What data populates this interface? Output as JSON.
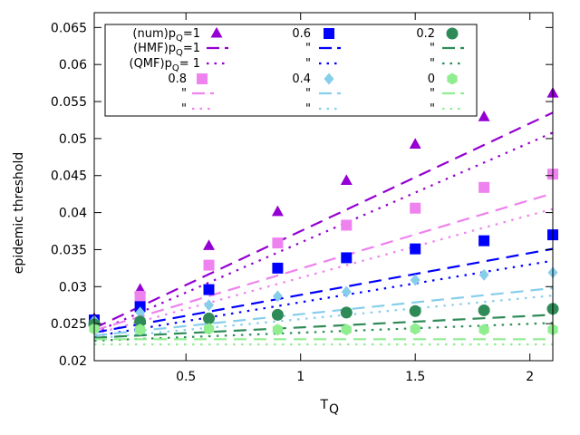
{
  "chart_data": {
    "type": "scatter",
    "title": "",
    "xlabel": "T",
    "xlabel_sub": "Q",
    "ylabel": "epidemic threshold",
    "xlim": [
      0.1,
      2.1
    ],
    "ylim": [
      0.02,
      0.067
    ],
    "xticks": [
      0.5,
      1,
      1.5,
      2
    ],
    "xtick_labels": [
      "0.5",
      "1",
      "1.5",
      "2"
    ],
    "yticks": [
      0.02,
      0.025,
      0.03,
      0.035,
      0.04,
      0.045,
      0.05,
      0.055,
      0.06,
      0.065
    ],
    "ytick_labels": [
      "0.02",
      "0.025",
      "0.03",
      "0.035",
      "0.04",
      "0.045",
      "0.05",
      "0.055",
      "0.06",
      "0.065"
    ],
    "grid": false,
    "legend_position": "top-left",
    "x_num": [
      0.1,
      0.3,
      0.6,
      0.9,
      1.2,
      1.5,
      1.8,
      2.1
    ],
    "series": [
      {
        "pq": "1",
        "color": "#9400d3",
        "marker": "triangle",
        "num": [
          0.0257,
          0.0296,
          0.0355,
          0.0401,
          0.0443,
          0.0492,
          0.0529,
          0.0561
        ],
        "hmf": [
          [
            0.1,
            0.0244
          ],
          [
            2.1,
            0.0535
          ]
        ],
        "qmf": [
          [
            0.1,
            0.0238
          ],
          [
            2.1,
            0.0508
          ]
        ]
      },
      {
        "pq": "0.8",
        "color": "#ee82ee",
        "marker": "square",
        "num": [
          0.0255,
          0.0287,
          0.0329,
          0.0359,
          0.0383,
          0.0406,
          0.0434,
          0.0452
        ],
        "hmf": [
          [
            0.1,
            0.0241
          ],
          [
            2.1,
            0.0426
          ]
        ],
        "qmf": [
          [
            0.1,
            0.0236
          ],
          [
            2.1,
            0.0405
          ]
        ]
      },
      {
        "pq": "0.6",
        "color": "#0000ff",
        "marker": "square",
        "num": [
          0.0255,
          0.0273,
          0.0296,
          0.0325,
          0.0339,
          0.0351,
          0.0362,
          0.037
        ],
        "hmf": [
          [
            0.1,
            0.0238
          ],
          [
            2.1,
            0.0351
          ]
        ],
        "qmf": [
          [
            0.1,
            0.0233
          ],
          [
            2.1,
            0.0335
          ]
        ]
      },
      {
        "pq": "0.4",
        "color": "#87ceeb",
        "marker": "diamond",
        "num": [
          0.0254,
          0.0265,
          0.0275,
          0.0287,
          0.0293,
          0.0309,
          0.0316,
          0.0319
        ],
        "hmf": [
          [
            0.1,
            0.0234
          ],
          [
            2.1,
            0.0298
          ]
        ],
        "qmf": [
          [
            0.1,
            0.023
          ],
          [
            2.1,
            0.0288
          ]
        ]
      },
      {
        "pq": "0.2",
        "color": "#2e8b57",
        "marker": "circle",
        "num": [
          0.0249,
          0.0253,
          0.0257,
          0.0262,
          0.0265,
          0.0267,
          0.0268,
          0.027
        ],
        "hmf": [
          [
            0.1,
            0.0231
          ],
          [
            2.1,
            0.0262
          ]
        ],
        "qmf": [
          [
            0.1,
            0.0227
          ],
          [
            2.1,
            0.0251
          ]
        ]
      },
      {
        "pq": "0",
        "color": "#90ee90",
        "marker": "hexagon",
        "num": [
          0.0243,
          0.0242,
          0.0243,
          0.0242,
          0.0242,
          0.0243,
          0.0242,
          0.0242
        ],
        "hmf": [
          [
            0.1,
            0.0229
          ],
          [
            2.1,
            0.0229
          ]
        ],
        "qmf": [
          [
            0.1,
            0.0222
          ],
          [
            2.1,
            0.0222
          ]
        ]
      }
    ],
    "legend": {
      "num_label": "(num)p",
      "num_sub": "Q",
      "num_suffix": "=1",
      "hmf_label": "(HMF)p",
      "hmf_sub": "Q",
      "hmf_suffix": "=1",
      "qmf_label": "(QMF)p",
      "qmf_sub": "Q",
      "qmf_suffix": "= 1",
      "ditto": "\"",
      "pq_values": [
        "1",
        "0.6",
        "0.2",
        "0.8",
        "0.4",
        "0"
      ]
    }
  }
}
